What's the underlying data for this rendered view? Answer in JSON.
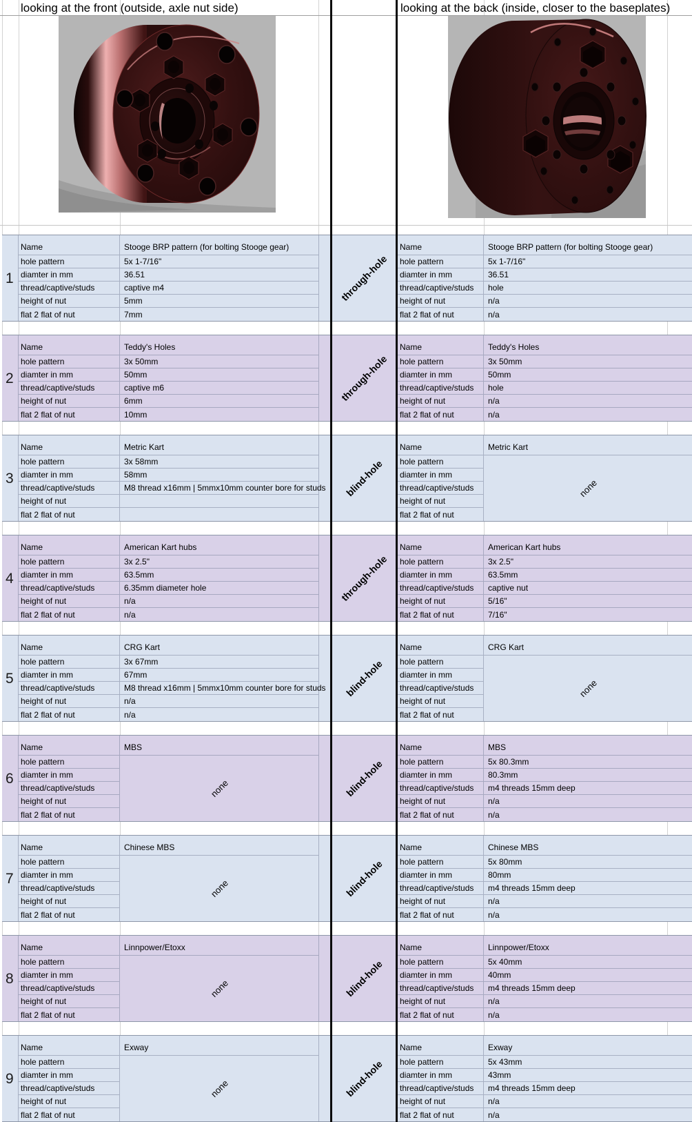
{
  "headers": {
    "front": "looking at the front (outside, axle nut side)",
    "back": "looking at the back (inside, closer to the baseplates)"
  },
  "images": {
    "front_alt": "front-render-of-hub-adapter",
    "back_alt": "back-render-of-hub-adapter"
  },
  "row_labels": [
    "Name",
    "hole pattern",
    "diamter in mm",
    "thread/captive/studs",
    "height of nut",
    "flat 2 flat of nut"
  ],
  "none_label": "none",
  "colors": {
    "blue": "#dae3f0",
    "purple": "#d9d1e8"
  },
  "sections": [
    {
      "num": "1",
      "hole_type": "through-hole",
      "color": "blue",
      "front": {
        "values": [
          "Stooge BRP pattern (for bolting Stooge gear)",
          "5x 1-7/16\"",
          "36.51",
          "captive m4",
          "5mm",
          "7mm"
        ]
      },
      "back": {
        "values": [
          "Stooge BRP pattern (for bolting Stooge gear)",
          "5x 1-7/16\"",
          "36.51",
          "hole",
          "n/a",
          "n/a"
        ]
      }
    },
    {
      "num": "2",
      "hole_type": "through-hole",
      "color": "purple",
      "front": {
        "values": [
          "Teddy's Holes",
          "3x 50mm",
          "50mm",
          "captive m6",
          "6mm",
          "10mm"
        ]
      },
      "back": {
        "values": [
          "Teddy's Holes",
          "3x 50mm",
          "50mm",
          "hole",
          "n/a",
          "n/a"
        ]
      }
    },
    {
      "num": "3",
      "hole_type": "blind-hole",
      "color": "blue",
      "front": {
        "values": [
          "Metric Kart",
          "3x 58mm",
          "58mm",
          "M8 thread x16mm | 5mmx10mm counter bore for studs",
          "",
          ""
        ]
      },
      "back": {
        "name": "Metric Kart",
        "merged": "none"
      }
    },
    {
      "num": "4",
      "hole_type": "through-hole",
      "color": "purple",
      "front": {
        "values": [
          "American Kart hubs",
          "3x 2.5\"",
          "63.5mm",
          "6.35mm diameter hole",
          "n/a",
          "n/a"
        ]
      },
      "back": {
        "values": [
          "American Kart hubs",
          "3x 2.5\"",
          "63.5mm",
          "captive nut",
          "5/16\"",
          "7/16\""
        ]
      }
    },
    {
      "num": "5",
      "hole_type": "blind-hole",
      "color": "blue",
      "front": {
        "values": [
          "CRG Kart",
          "3x 67mm",
          "67mm",
          "M8 thread x16mm | 5mmx10mm counter bore for studs",
          "n/a",
          "n/a"
        ]
      },
      "back": {
        "name": "CRG Kart",
        "merged": "none"
      }
    },
    {
      "num": "6",
      "hole_type": "blind-hole",
      "color": "purple",
      "front": {
        "name": "MBS",
        "merged": "none"
      },
      "back": {
        "values": [
          "MBS",
          "5x 80.3mm",
          "80.3mm",
          "m4 threads 15mm deep",
          "n/a",
          "n/a"
        ]
      }
    },
    {
      "num": "7",
      "hole_type": "blind-hole",
      "color": "blue",
      "front": {
        "name": "Chinese MBS",
        "merged": "none"
      },
      "back": {
        "values": [
          "Chinese MBS",
          "5x 80mm",
          "80mm",
          "m4 threads 15mm deep",
          "n/a",
          "n/a"
        ]
      }
    },
    {
      "num": "8",
      "hole_type": "blind-hole",
      "color": "purple",
      "front": {
        "name": "Linnpower/Etoxx",
        "merged": "none"
      },
      "back": {
        "values": [
          "Linnpower/Etoxx",
          "5x 40mm",
          "40mm",
          "m4 threads 15mm deep",
          "n/a",
          "n/a"
        ]
      }
    },
    {
      "num": "9",
      "hole_type": "blind-hole",
      "color": "blue",
      "front": {
        "name": "Exway",
        "merged": "none"
      },
      "back": {
        "values": [
          "Exway",
          "5x 43mm",
          "43mm",
          "m4 threads 15mm deep",
          "n/a",
          "n/a"
        ]
      }
    }
  ]
}
